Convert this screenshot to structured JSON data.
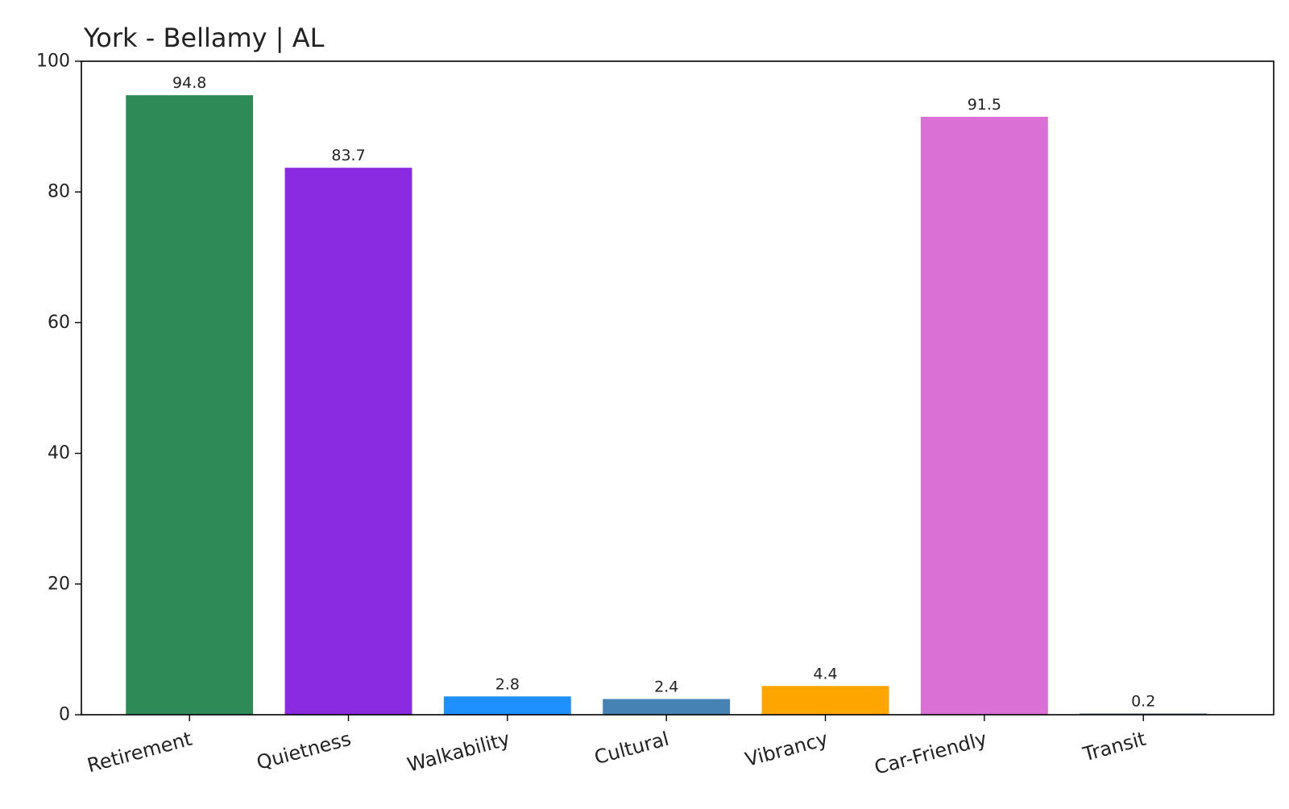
{
  "chart_data": {
    "type": "bar",
    "title": "York - Bellamy | AL",
    "xlabel": "",
    "ylabel": "",
    "categories": [
      "Retirement",
      "Quietness",
      "Walkability",
      "Cultural",
      "Vibrancy",
      "Car-Friendly",
      "Transit"
    ],
    "values": [
      94.8,
      83.7,
      2.8,
      2.4,
      4.4,
      91.5,
      0.2
    ],
    "value_labels": [
      "94.8",
      "83.7",
      "2.8",
      "2.4",
      "4.4",
      "91.5",
      "0.2"
    ],
    "colors": [
      "#2e8b57",
      "#8a2be2",
      "#1e90ff",
      "#4682b4",
      "#ffa500",
      "#da70d6",
      "#778899"
    ],
    "ylim": [
      0,
      100
    ],
    "yticks": [
      0,
      20,
      40,
      60,
      80,
      100
    ],
    "ytick_labels": [
      "0",
      "20",
      "40",
      "60",
      "80",
      "100"
    ],
    "grid": false,
    "legend": "none"
  }
}
